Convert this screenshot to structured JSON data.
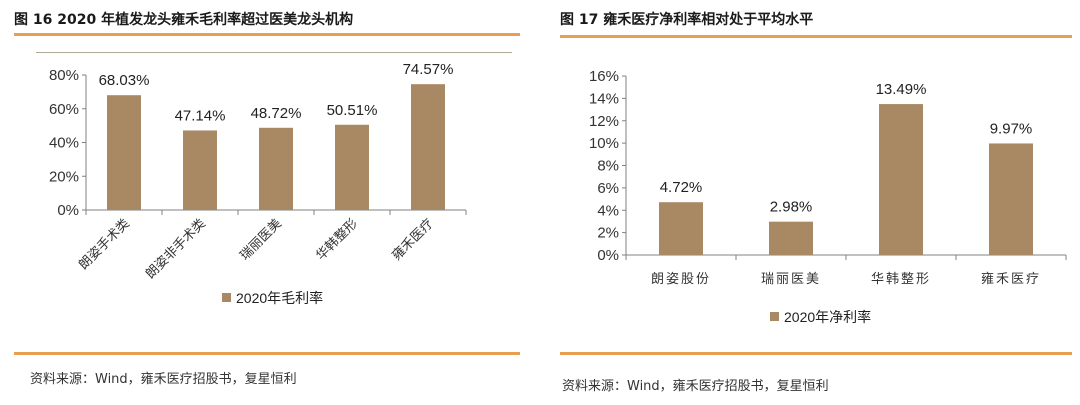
{
  "colors": {
    "bar": "#a88964",
    "accent_rule": "#e8a050",
    "axis": "#808080",
    "text": "#222222"
  },
  "left_panel": {
    "title": "图 16 2020  年植发龙头雍禾毛利率超过医美龙头机构",
    "source": "资料来源：Wind，雍禾医疗招股书，复星恒利"
  },
  "right_panel": {
    "title": "图 17  雍禾医疗净利率相对处于平均水平",
    "source": "资料来源：Wind，雍禾医疗招股书，复星恒利"
  },
  "chart_data": [
    {
      "type": "bar",
      "title": "图 16 2020 年植发龙头雍禾毛利率超过医美龙头机构",
      "categories": [
        "朗姿手术类",
        "朗姿非手术类",
        "瑞丽医美",
        "华韩整形",
        "雍禾医疗"
      ],
      "series": [
        {
          "name": "2020年毛利率",
          "values": [
            68.03,
            47.14,
            48.72,
            50.51,
            74.57
          ]
        }
      ],
      "data_labels": [
        "68.03%",
        "47.14%",
        "48.72%",
        "50.51%",
        "74.57%"
      ],
      "y_ticks": [
        "0%",
        "20%",
        "40%",
        "60%",
        "80%"
      ],
      "ylim": [
        0,
        80
      ],
      "xlabel": "",
      "ylabel": "",
      "grid": false,
      "legend_position": "bottom",
      "x_labels_rotated": true
    },
    {
      "type": "bar",
      "title": "图 17 雍禾医疗净利率相对处于平均水平",
      "categories": [
        "朗姿股份",
        "瑞丽医美",
        "华韩整形",
        "雍禾医疗"
      ],
      "series": [
        {
          "name": "2020年净利率",
          "values": [
            4.72,
            2.98,
            13.49,
            9.97
          ]
        }
      ],
      "data_labels": [
        "4.72%",
        "2.98%",
        "13.49%",
        "9.97%"
      ],
      "y_ticks": [
        "0%",
        "2%",
        "4%",
        "6%",
        "8%",
        "10%",
        "12%",
        "14%",
        "16%"
      ],
      "ylim": [
        0,
        16
      ],
      "xlabel": "",
      "ylabel": "",
      "grid": false,
      "legend_position": "bottom",
      "x_labels_rotated": false
    }
  ]
}
